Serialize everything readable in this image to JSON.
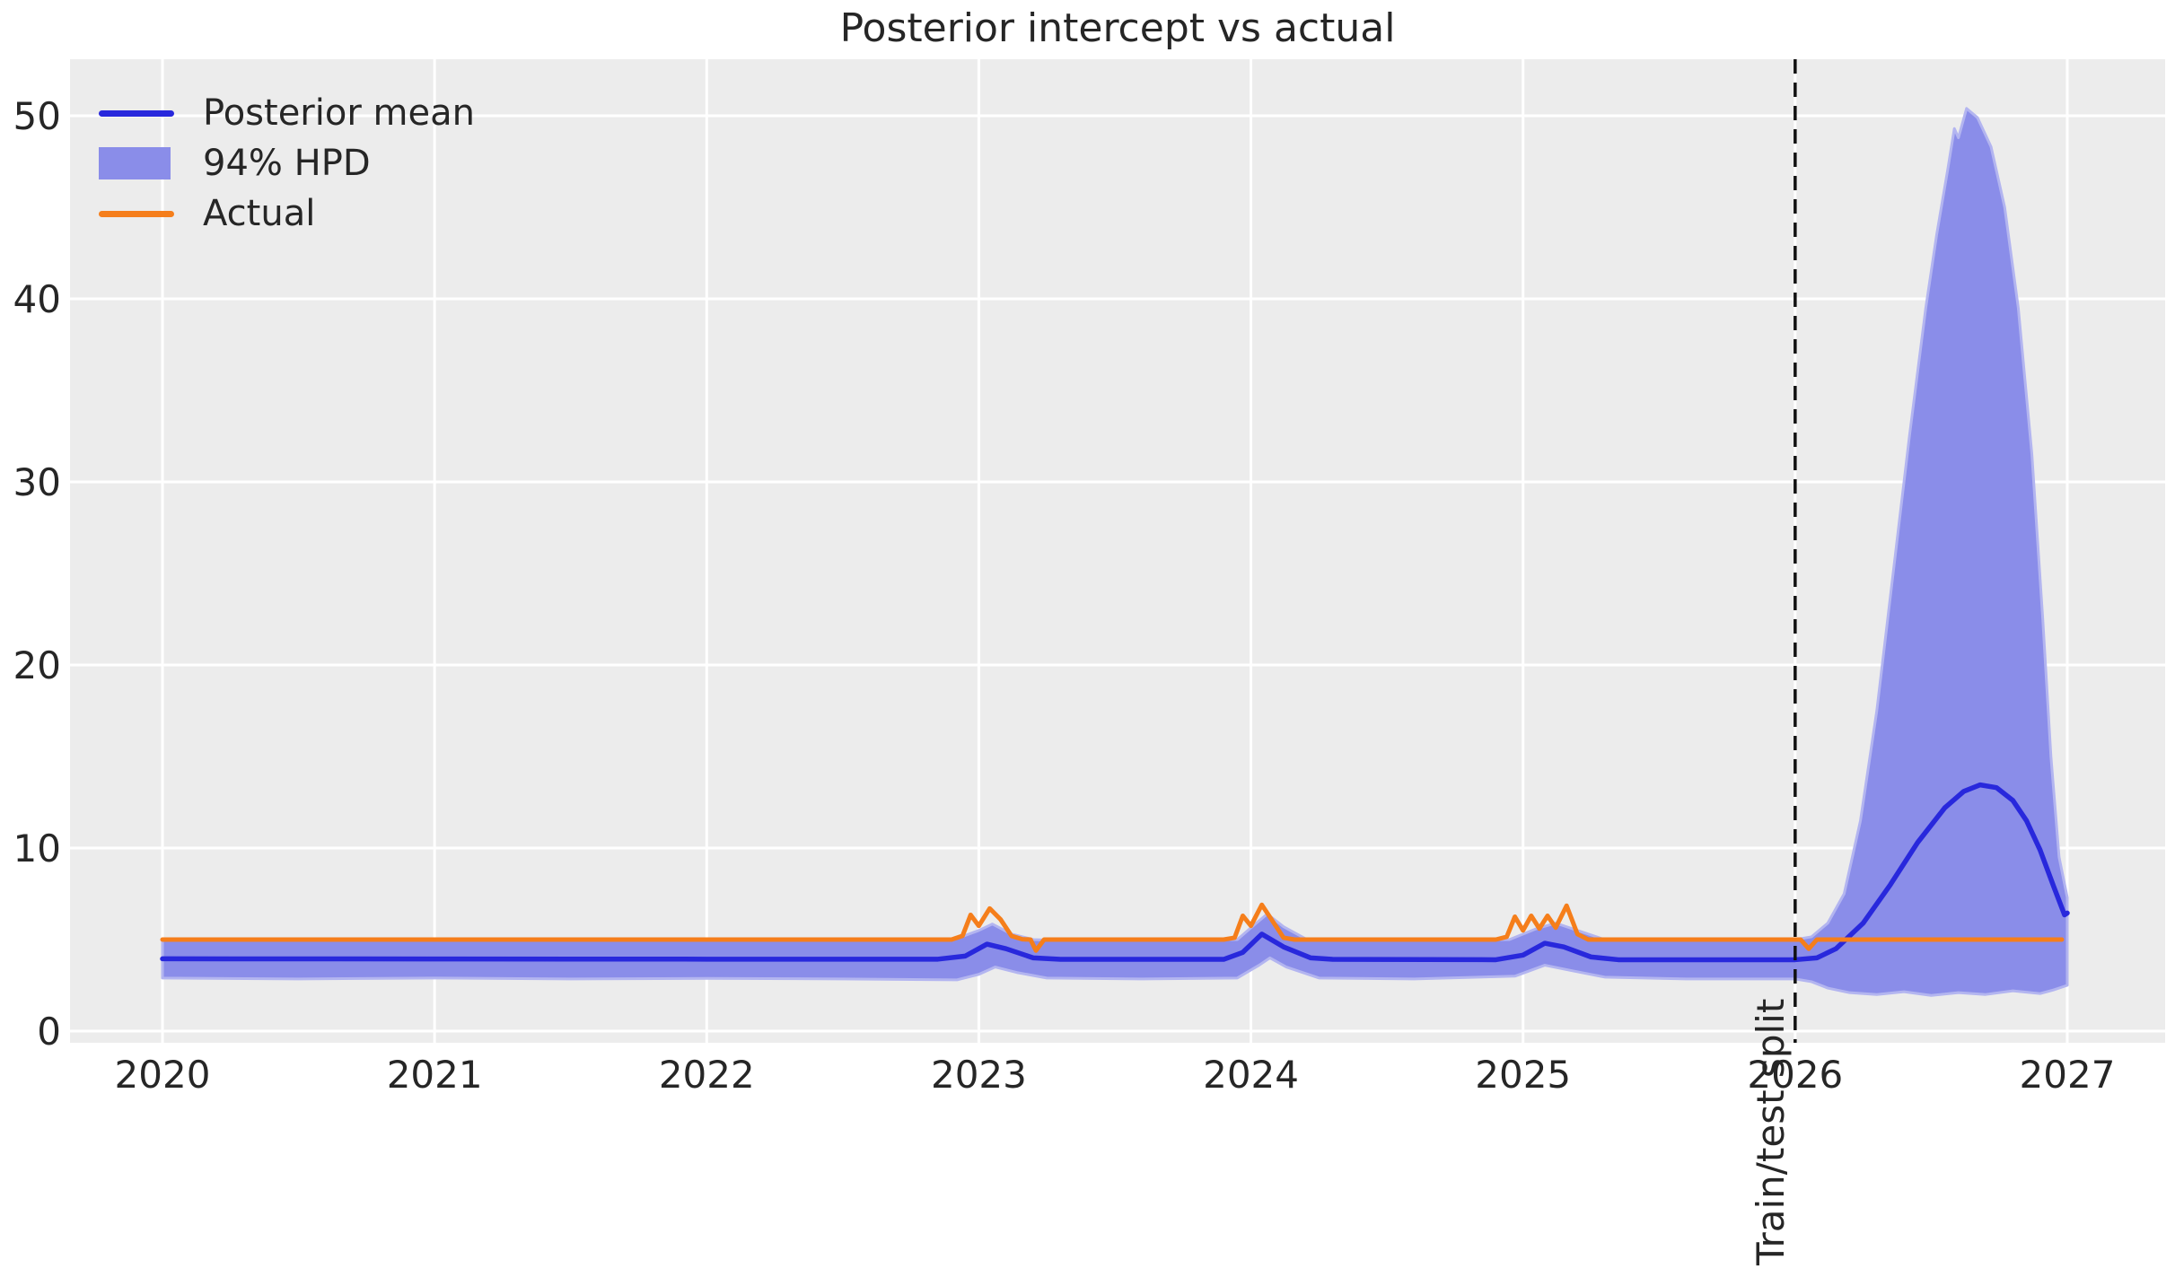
{
  "title": "Posterior intercept vs actual",
  "legend": [
    {
      "label": "Posterior mean",
      "type": "line",
      "color": "#2828DC"
    },
    {
      "label": "94% HPD",
      "type": "patch",
      "color": "#8A8DE9"
    },
    {
      "label": "Actual",
      "type": "line",
      "color": "#F57E1B"
    }
  ],
  "chart_data": {
    "type": "line",
    "title": "Posterior intercept vs actual",
    "xlabel": "",
    "ylabel": "",
    "xticks": [
      2020,
      2021,
      2022,
      2023,
      2024,
      2025,
      2026,
      2027
    ],
    "yticks": [
      0,
      10,
      20,
      30,
      40,
      50
    ],
    "xlim": [
      2019.66,
      2027.36
    ],
    "ylim": [
      -0.65,
      53.1
    ],
    "grid": true,
    "legend_position": "upper left",
    "plot_background": "#ECECEC",
    "grid_color": "#FFFFFF",
    "split": {
      "x": 2026,
      "label": "Train/test split",
      "style": "dashed",
      "color": "#111111"
    },
    "series": [
      {
        "name": "Posterior mean",
        "color": "#2828DC",
        "points": [
          [
            2020.0,
            3.95
          ],
          [
            2021.0,
            3.94
          ],
          [
            2022.0,
            3.93
          ],
          [
            2022.85,
            3.93
          ],
          [
            2022.95,
            4.1
          ],
          [
            2023.03,
            4.75
          ],
          [
            2023.1,
            4.5
          ],
          [
            2023.2,
            4.0
          ],
          [
            2023.3,
            3.92
          ],
          [
            2023.9,
            3.92
          ],
          [
            2023.97,
            4.3
          ],
          [
            2024.04,
            5.3
          ],
          [
            2024.12,
            4.6
          ],
          [
            2024.22,
            4.0
          ],
          [
            2024.3,
            3.92
          ],
          [
            2024.9,
            3.9
          ],
          [
            2025.0,
            4.15
          ],
          [
            2025.08,
            4.8
          ],
          [
            2025.15,
            4.6
          ],
          [
            2025.25,
            4.05
          ],
          [
            2025.35,
            3.9
          ],
          [
            2025.7,
            3.9
          ],
          [
            2026.0,
            3.9
          ],
          [
            2026.08,
            4.0
          ],
          [
            2026.15,
            4.5
          ],
          [
            2026.25,
            5.9
          ],
          [
            2026.35,
            8.0
          ],
          [
            2026.45,
            10.3
          ],
          [
            2026.55,
            12.2
          ],
          [
            2026.62,
            13.1
          ],
          [
            2026.68,
            13.45
          ],
          [
            2026.74,
            13.3
          ],
          [
            2026.8,
            12.6
          ],
          [
            2026.85,
            11.5
          ],
          [
            2026.9,
            9.9
          ],
          [
            2026.95,
            7.9
          ],
          [
            2026.99,
            6.35
          ],
          [
            2027.0,
            6.45
          ]
        ]
      },
      {
        "name": "Actual",
        "color": "#F57E1B",
        "points": [
          [
            2020.0,
            5.0
          ],
          [
            2022.9,
            5.0
          ],
          [
            2022.94,
            5.2
          ],
          [
            2022.97,
            6.35
          ],
          [
            2023.0,
            5.75
          ],
          [
            2023.04,
            6.7
          ],
          [
            2023.08,
            6.1
          ],
          [
            2023.12,
            5.2
          ],
          [
            2023.16,
            5.02
          ],
          [
            2023.19,
            5.0
          ],
          [
            2023.21,
            4.4
          ],
          [
            2023.24,
            5.0
          ],
          [
            2023.9,
            5.0
          ],
          [
            2023.94,
            5.1
          ],
          [
            2023.97,
            6.3
          ],
          [
            2024.0,
            5.75
          ],
          [
            2024.04,
            6.9
          ],
          [
            2024.08,
            6.0
          ],
          [
            2024.12,
            5.1
          ],
          [
            2024.16,
            5.0
          ],
          [
            2024.9,
            5.0
          ],
          [
            2024.94,
            5.15
          ],
          [
            2024.97,
            6.25
          ],
          [
            2025.0,
            5.5
          ],
          [
            2025.03,
            6.3
          ],
          [
            2025.06,
            5.6
          ],
          [
            2025.09,
            6.3
          ],
          [
            2025.12,
            5.65
          ],
          [
            2025.16,
            6.85
          ],
          [
            2025.2,
            5.3
          ],
          [
            2025.24,
            5.0
          ],
          [
            2026.02,
            5.0
          ],
          [
            2026.05,
            4.5
          ],
          [
            2026.08,
            5.0
          ],
          [
            2026.98,
            5.0
          ]
        ]
      }
    ],
    "band": {
      "name": "94% HPD",
      "color": "#8A8DE9",
      "edge_color": "#B3B5F0",
      "upper": [
        [
          2020.0,
          4.95
        ],
        [
          2021.0,
          4.95
        ],
        [
          2022.0,
          4.95
        ],
        [
          2022.9,
          4.95
        ],
        [
          2023.0,
          5.5
        ],
        [
          2023.05,
          5.85
        ],
        [
          2023.12,
          5.3
        ],
        [
          2023.2,
          5.0
        ],
        [
          2023.3,
          4.95
        ],
        [
          2023.95,
          5.0
        ],
        [
          2024.02,
          5.9
        ],
        [
          2024.06,
          6.4
        ],
        [
          2024.12,
          5.7
        ],
        [
          2024.2,
          5.05
        ],
        [
          2024.3,
          4.95
        ],
        [
          2024.95,
          5.0
        ],
        [
          2025.05,
          5.6
        ],
        [
          2025.12,
          5.9
        ],
        [
          2025.2,
          5.5
        ],
        [
          2025.3,
          5.0
        ],
        [
          2025.4,
          4.95
        ],
        [
          2026.0,
          5.0
        ],
        [
          2026.06,
          5.15
        ],
        [
          2026.12,
          5.9
        ],
        [
          2026.18,
          7.5
        ],
        [
          2026.24,
          11.5
        ],
        [
          2026.3,
          17.5
        ],
        [
          2026.36,
          25.0
        ],
        [
          2026.42,
          32.5
        ],
        [
          2026.48,
          39.5
        ],
        [
          2026.52,
          43.5
        ],
        [
          2026.56,
          47.0
        ],
        [
          2026.585,
          49.3
        ],
        [
          2026.6,
          48.8
        ],
        [
          2026.63,
          50.4
        ],
        [
          2026.67,
          49.9
        ],
        [
          2026.72,
          48.3
        ],
        [
          2026.77,
          45.0
        ],
        [
          2026.82,
          39.5
        ],
        [
          2026.87,
          31.5
        ],
        [
          2026.91,
          22.5
        ],
        [
          2026.94,
          15.0
        ],
        [
          2026.97,
          9.5
        ],
        [
          2027.0,
          7.3
        ]
      ],
      "lower": [
        [
          2020.0,
          2.9
        ],
        [
          2020.5,
          2.85
        ],
        [
          2021.0,
          2.9
        ],
        [
          2021.5,
          2.85
        ],
        [
          2022.0,
          2.88
        ],
        [
          2022.5,
          2.85
        ],
        [
          2022.92,
          2.8
        ],
        [
          2023.0,
          3.1
        ],
        [
          2023.06,
          3.5
        ],
        [
          2023.14,
          3.2
        ],
        [
          2023.25,
          2.9
        ],
        [
          2023.6,
          2.85
        ],
        [
          2023.95,
          2.9
        ],
        [
          2024.03,
          3.6
        ],
        [
          2024.07,
          4.0
        ],
        [
          2024.13,
          3.5
        ],
        [
          2024.25,
          2.9
        ],
        [
          2024.6,
          2.85
        ],
        [
          2024.97,
          3.0
        ],
        [
          2025.08,
          3.6
        ],
        [
          2025.18,
          3.3
        ],
        [
          2025.3,
          2.95
        ],
        [
          2025.6,
          2.85
        ],
        [
          2026.0,
          2.85
        ],
        [
          2026.06,
          2.7
        ],
        [
          2026.12,
          2.35
        ],
        [
          2026.2,
          2.1
        ],
        [
          2026.3,
          2.0
        ],
        [
          2026.4,
          2.15
        ],
        [
          2026.5,
          1.95
        ],
        [
          2026.6,
          2.1
        ],
        [
          2026.7,
          2.0
        ],
        [
          2026.8,
          2.2
        ],
        [
          2026.9,
          2.05
        ],
        [
          2026.95,
          2.25
        ],
        [
          2027.0,
          2.5
        ]
      ]
    }
  }
}
